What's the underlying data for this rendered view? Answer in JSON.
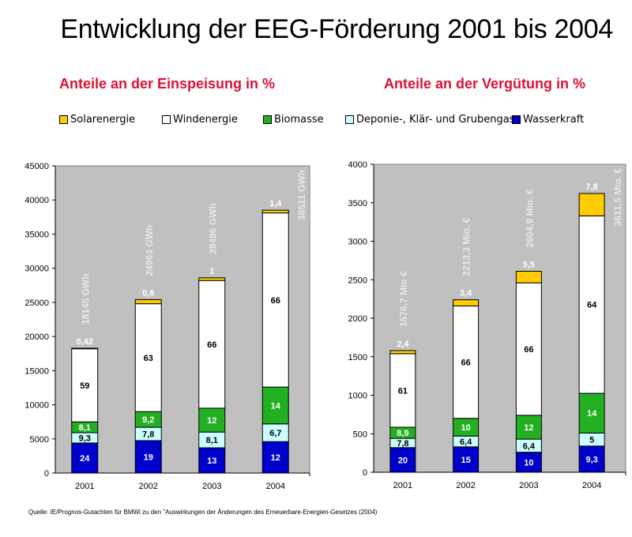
{
  "title": "Entwicklung der EEG-Förderung 2001 bis 2004",
  "source": "Quelle: IE/Prognos-Gutachten für BMWi zu den \"Auswirkungen der Änderungen des Erneuerbare-Energien-Gesetzes (2004)",
  "legend": [
    {
      "name": "Solarenergie",
      "color": "#ffcc00"
    },
    {
      "name": "Windenergie",
      "color": "#ffffff"
    },
    {
      "name": "Biomasse",
      "color": "#22b022"
    },
    {
      "name": "Deponie-, Klär- und Grubengas",
      "color": "#ccffff"
    },
    {
      "name": "Wasserkraft",
      "color": "#0000cc"
    }
  ],
  "chart_data": [
    {
      "type": "bar",
      "stacked": true,
      "title": "Anteile an der Einspeisung in %",
      "xlabel": "",
      "ylabel": "GWh",
      "ylim": [
        0,
        45000
      ],
      "yticks": [
        0,
        5000,
        10000,
        15000,
        20000,
        25000,
        30000,
        35000,
        40000,
        45000
      ],
      "grid": false,
      "background": "#c0c0c0",
      "categories": [
        "2001",
        "2002",
        "2003",
        "2004"
      ],
      "totals_labels": [
        "18145 GWh",
        "24963 GWh",
        "28496 GWh",
        "38511 GWh"
      ],
      "series": [
        {
          "name": "Wasserkraft",
          "values": [
            4400,
            4750,
            3700,
            4600
          ],
          "labels": [
            "24",
            "19",
            "13",
            "12"
          ],
          "label_color": "#ffffff"
        },
        {
          "name": "Deponie-, Klär- und Grubengas",
          "values": [
            1500,
            1950,
            2300,
            2600
          ],
          "labels": [
            "9,3",
            "7,8",
            "8,1",
            "6,7"
          ],
          "label_color": "#000000"
        },
        {
          "name": "Biomasse",
          "values": [
            1600,
            2300,
            3500,
            5400
          ],
          "labels": [
            "8,1",
            "9,2",
            "12",
            "14"
          ],
          "label_color": "#ffffff"
        },
        {
          "name": "Windenergie",
          "values": [
            10700,
            15800,
            18700,
            25500
          ],
          "labels": [
            "59",
            "63",
            "66",
            "66"
          ],
          "label_color": "#000000"
        },
        {
          "name": "Solarenergie",
          "values": [
            80,
            600,
            400,
            400
          ],
          "labels": [
            "0,42",
            "0,6",
            "1",
            "1,4"
          ],
          "label_color": "#ffffff"
        }
      ]
    },
    {
      "type": "bar",
      "stacked": true,
      "title": "Anteile an der Vergütung in %",
      "xlabel": "",
      "ylabel": "Mio. €",
      "ylim": [
        0,
        4000
      ],
      "yticks": [
        0,
        500,
        1000,
        1500,
        2000,
        2500,
        3000,
        3500,
        4000
      ],
      "grid": false,
      "background": "#c0c0c0",
      "categories": [
        "2001",
        "2002",
        "2003",
        "2004"
      ],
      "totals_labels": [
        "1576,7 Mio €",
        "2213,3 Mio. €",
        "2604,9 Mio. €",
        "3611,5 Mio. €"
      ],
      "series": [
        {
          "name": "Wasserkraft",
          "values": [
            320,
            330,
            260,
            340
          ],
          "labels": [
            "20",
            "15",
            "10",
            "9,3"
          ],
          "label_color": "#ffffff"
        },
        {
          "name": "Deponie-, Klär- und Grubengas",
          "values": [
            120,
            140,
            170,
            170
          ],
          "labels": [
            "7,8",
            "6,4",
            "6,4",
            "5"
          ],
          "label_color": "#000000"
        },
        {
          "name": "Biomasse",
          "values": [
            145,
            230,
            310,
            515
          ],
          "labels": [
            "8,9",
            "10",
            "12",
            "14"
          ],
          "label_color": "#ffffff"
        },
        {
          "name": "Windenergie",
          "values": [
            955,
            1460,
            1720,
            2305
          ],
          "labels": [
            "61",
            "66",
            "66",
            "64"
          ],
          "label_color": "#000000"
        },
        {
          "name": "Solarenergie",
          "values": [
            40,
            80,
            150,
            290
          ],
          "labels": [
            "2,4",
            "3,4",
            "5,5",
            "7,8"
          ],
          "label_color": "#ffffff"
        }
      ]
    }
  ]
}
